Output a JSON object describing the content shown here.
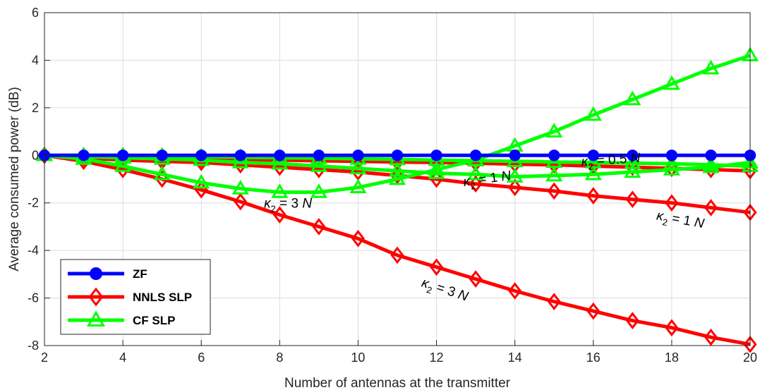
{
  "colors": {
    "zf": "#0000ff",
    "nnls": "#ff0000",
    "cf": "#00ff00",
    "grid": "#dcdcdc",
    "axis": "#262626"
  },
  "chart_data": {
    "type": "line",
    "xlabel": "Number of antennas at the transmitter",
    "ylabel": "Average consumed power (dB)",
    "xlim": [
      2,
      20
    ],
    "ylim": [
      -8,
      6
    ],
    "xticks": [
      2,
      4,
      6,
      8,
      10,
      12,
      14,
      16,
      18,
      20
    ],
    "yticks": [
      -8,
      -6,
      -4,
      -2,
      0,
      2,
      4,
      6
    ],
    "grid": true,
    "legend_position": "bottom-left",
    "legend": [
      {
        "label": "ZF",
        "marker": "circle",
        "color": "#0000ff"
      },
      {
        "label": "NNLS SLP",
        "marker": "diamond",
        "color": "#ff0000"
      },
      {
        "label": "CF SLP",
        "marker": "triangle",
        "color": "#00ff00"
      }
    ],
    "x": [
      2,
      3,
      4,
      5,
      6,
      7,
      8,
      9,
      10,
      11,
      12,
      13,
      14,
      15,
      16,
      17,
      18,
      19,
      20
    ],
    "series": [
      {
        "marker": "circle",
        "color": "#0000ff",
        "kappa": "",
        "values": [
          0,
          0,
          0,
          0,
          0,
          0,
          0,
          0,
          0,
          0,
          0,
          0,
          0,
          0,
          0,
          0,
          0,
          0,
          0
        ]
      },
      {
        "marker": "diamond",
        "color": "#ff0000",
        "kappa": "0.5",
        "values": [
          0,
          -0.05,
          -0.1,
          -0.12,
          -0.15,
          -0.18,
          -0.2,
          -0.23,
          -0.25,
          -0.28,
          -0.3,
          -0.33,
          -0.37,
          -0.4,
          -0.45,
          -0.5,
          -0.55,
          -0.6,
          -0.65
        ]
      },
      {
        "marker": "diamond",
        "color": "#ff0000",
        "kappa": "1",
        "values": [
          0,
          -0.1,
          -0.2,
          -0.25,
          -0.3,
          -0.4,
          -0.5,
          -0.6,
          -0.7,
          -0.85,
          -1.0,
          -1.2,
          -1.35,
          -1.5,
          -1.7,
          -1.85,
          -2.0,
          -2.2,
          -2.4
        ]
      },
      {
        "marker": "diamond",
        "color": "#ff0000",
        "kappa": "3",
        "values": [
          0,
          -0.25,
          -0.6,
          -1.0,
          -1.45,
          -1.95,
          -2.5,
          -3.0,
          -3.5,
          -4.2,
          -4.7,
          -5.2,
          -5.7,
          -6.15,
          -6.55,
          -6.95,
          -7.25,
          -7.65,
          -7.95
        ]
      },
      {
        "marker": "triangle",
        "color": "#00ff00",
        "kappa": "0.5",
        "values": [
          0,
          0,
          0,
          -0.02,
          -0.05,
          -0.08,
          -0.1,
          -0.12,
          -0.15,
          -0.17,
          -0.2,
          -0.22,
          -0.25,
          -0.28,
          -0.3,
          -0.33,
          -0.35,
          -0.4,
          -0.45
        ]
      },
      {
        "marker": "triangle",
        "color": "#00ff00",
        "kappa": "1",
        "values": [
          0,
          -0.05,
          -0.1,
          -0.15,
          -0.2,
          -0.3,
          -0.35,
          -0.45,
          -0.55,
          -0.65,
          -0.75,
          -0.8,
          -0.9,
          -0.85,
          -0.8,
          -0.7,
          -0.6,
          -0.5,
          -0.3
        ]
      },
      {
        "marker": "triangle",
        "color": "#00ff00",
        "kappa": "3",
        "values": [
          0,
          -0.15,
          -0.45,
          -0.8,
          -1.15,
          -1.4,
          -1.55,
          -1.55,
          -1.35,
          -1.0,
          -0.6,
          -0.2,
          0.4,
          1.0,
          1.7,
          2.35,
          3.0,
          3.65,
          4.2
        ]
      }
    ],
    "annotations": [
      {
        "id": "k05",
        "prefix": "κ",
        "sub": "2",
        "text": " = 0.5 ",
        "unit": "N",
        "x": 15.7,
        "y": -0.45,
        "angle": -4
      },
      {
        "id": "k1a",
        "prefix": "κ",
        "sub": "2",
        "text": " = 1 ",
        "unit": "N",
        "x": 12.7,
        "y": -1.3,
        "angle": -8
      },
      {
        "id": "k3a",
        "prefix": "κ",
        "sub": "2",
        "text": " = 3 ",
        "unit": "N",
        "x": 7.6,
        "y": -2.2,
        "angle": 0
      },
      {
        "id": "k1b",
        "prefix": "κ",
        "sub": "2",
        "text": " = 1 ",
        "unit": "N",
        "x": 17.6,
        "y": -2.7,
        "angle": 10
      },
      {
        "id": "k3b",
        "prefix": "κ",
        "sub": "2",
        "text": " = 3 ",
        "unit": "N",
        "x": 11.6,
        "y": -5.5,
        "angle": 18
      }
    ]
  }
}
